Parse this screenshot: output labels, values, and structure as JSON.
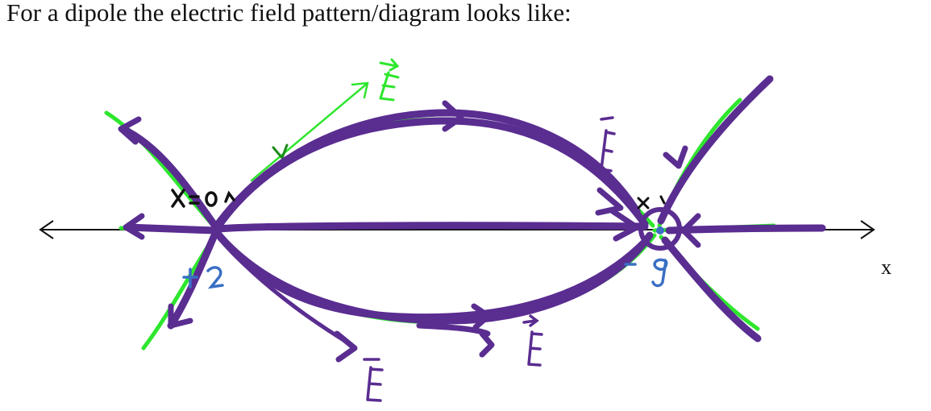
{
  "heading": "For a dipole the electric field pattern/diagram looks like:",
  "axis": {
    "label": "x"
  },
  "colors": {
    "field_line_green": "#2ee62e",
    "field_line_purple": "#5a2d91",
    "charge_blue": "#3a6fc4",
    "axis_black": "#111111"
  }
}
